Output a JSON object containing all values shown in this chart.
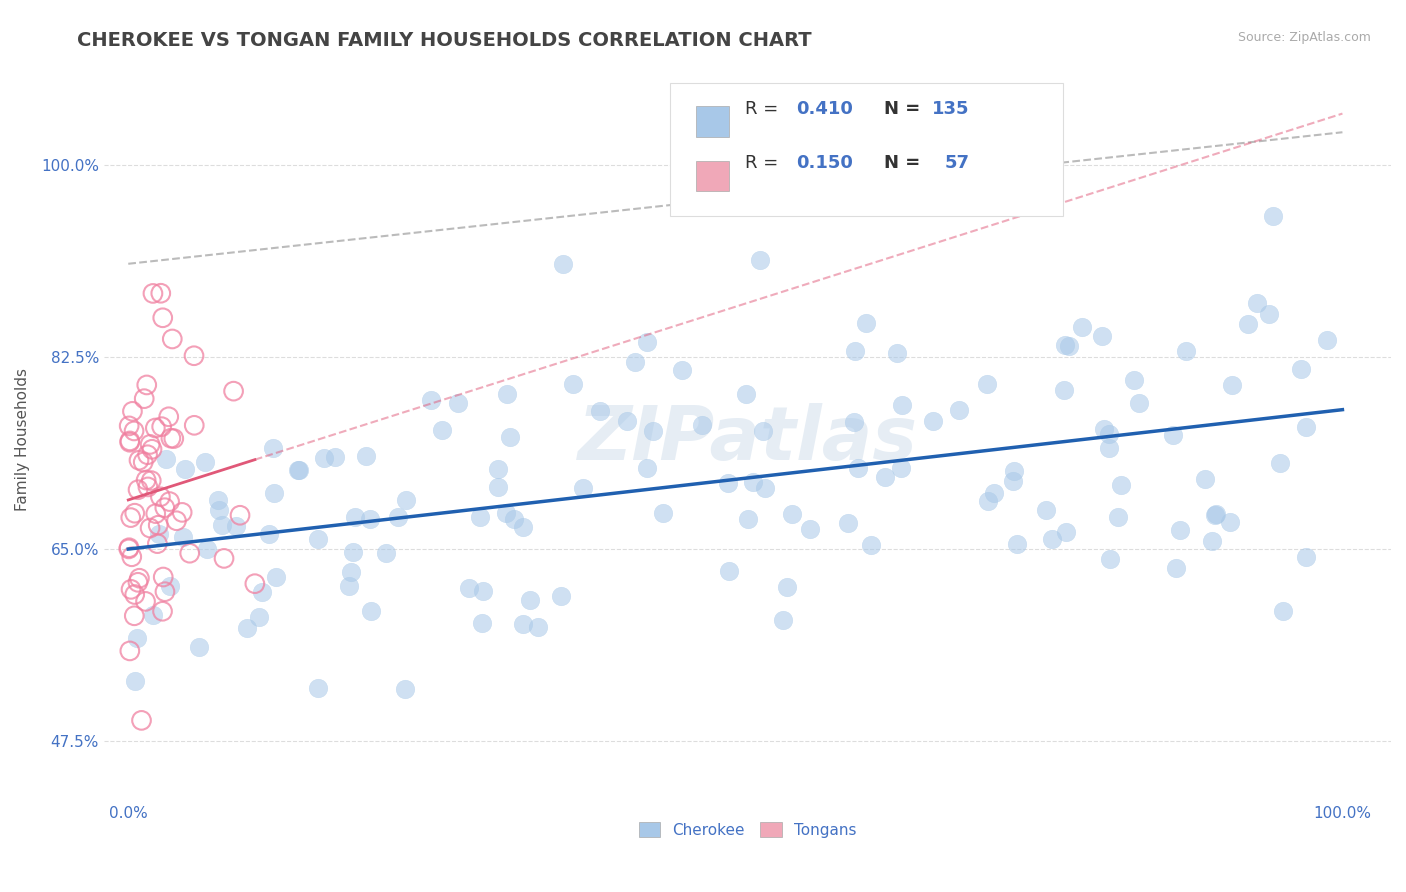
{
  "title": "CHEROKEE VS TONGAN FAMILY HOUSEHOLDS CORRELATION CHART",
  "source": "Source: ZipAtlas.com",
  "ylabel": "Family Households",
  "yticks": [
    0.475,
    0.65,
    0.825,
    1.0
  ],
  "ytick_labels": [
    "47.5%",
    "65.0%",
    "82.5%",
    "100.0%"
  ],
  "xtick_labels": [
    "0.0%",
    "100.0%"
  ],
  "R_blue": 0.41,
  "N_blue": 135,
  "R_pink": 0.15,
  "N_pink": 57,
  "blue_scatter_face": "#A8C8E8",
  "blue_scatter_edge": "#A8C8E8",
  "pink_scatter_face": "none",
  "pink_scatter_edge": "#F080A0",
  "blue_line_color": "#2060B0",
  "pink_line_color": "#E05878",
  "gray_dash_color": "#BBBBBB",
  "text_blue_color": "#4472C4",
  "title_color": "#444444",
  "background": "#FFFFFF",
  "watermark_color": "#C8D8E8",
  "legend_blue_label": "Cherokee",
  "legend_pink_label": "Tongans",
  "blue_box_color": "#A8C8E8",
  "pink_box_color": "#F0A8B8",
  "title_fontsize": 14,
  "axis_fontsize": 11,
  "legend_fontsize": 13,
  "scatter_size": 180,
  "scatter_alpha": 0.55
}
